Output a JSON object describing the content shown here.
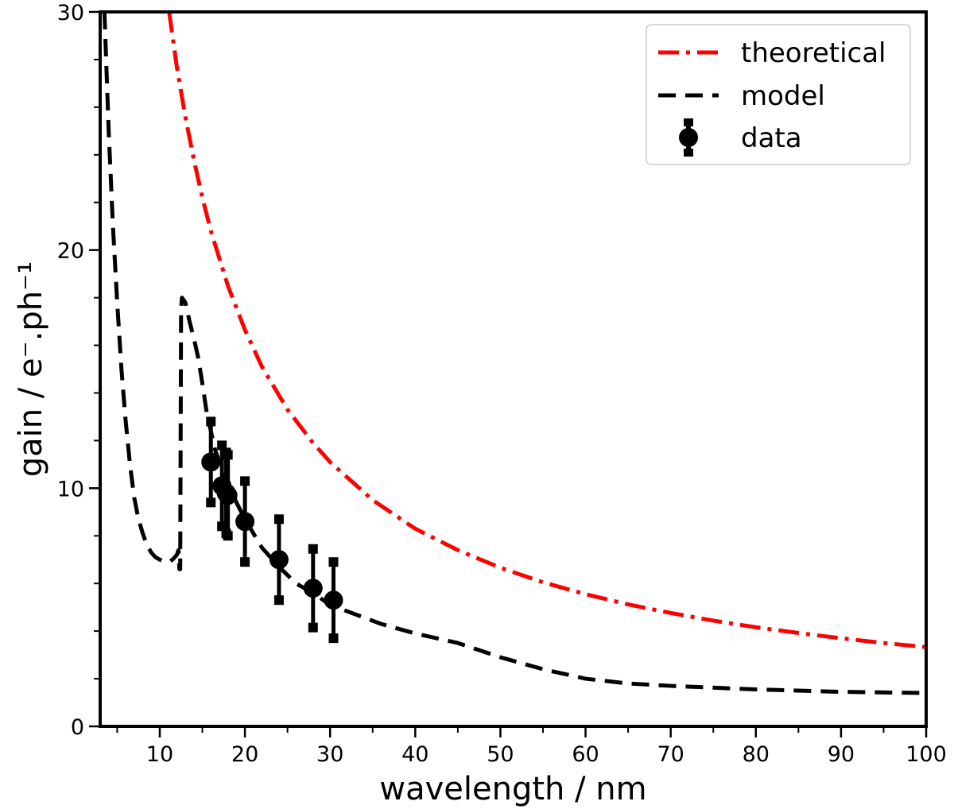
{
  "chart_data": {
    "type": "line",
    "xlabel": "wavelength / nm",
    "ylabel": "gain / e⁻.ph⁻¹",
    "xlim": [
      3,
      100
    ],
    "ylim": [
      0,
      30
    ],
    "x_ticks": [
      10,
      20,
      30,
      40,
      50,
      60,
      70,
      80,
      90,
      100
    ],
    "y_ticks": [
      0,
      10,
      20,
      30
    ],
    "legend_position": "top-right",
    "series": [
      {
        "name": "theoretical",
        "style": "dash-dot",
        "color": "#ff0000",
        "x": [
          11.1,
          12,
          13,
          14,
          15,
          16,
          18,
          20,
          22,
          25,
          28,
          30,
          35,
          40,
          45,
          50,
          55,
          60,
          65,
          70,
          75,
          80,
          85,
          90,
          95,
          100
        ],
        "y": [
          30.0,
          27.7,
          25.6,
          23.8,
          22.2,
          20.8,
          18.5,
          16.65,
          15.1,
          13.3,
          11.9,
          11.1,
          9.5,
          8.3,
          7.4,
          6.66,
          6.05,
          5.55,
          5.12,
          4.76,
          4.44,
          4.16,
          3.92,
          3.7,
          3.5,
          3.33
        ]
      },
      {
        "name": "model",
        "style": "dashed",
        "color": "#000000",
        "x": [
          3.5,
          4,
          4.5,
          5,
          5.5,
          6,
          6.5,
          7,
          7.5,
          8,
          8.5,
          9,
          9.5,
          10,
          10.5,
          11,
          11.5,
          12,
          12.2,
          12.3,
          12.4,
          12.5,
          12.6,
          13,
          13.5,
          14,
          14.5,
          15,
          15.5,
          16,
          16.5,
          17,
          17.5,
          18,
          19,
          20,
          22,
          24,
          26,
          28,
          30,
          33,
          36,
          40,
          45,
          50,
          55,
          60,
          65,
          70,
          80,
          90,
          100
        ],
        "y": [
          30.0,
          25.0,
          21.0,
          17.8,
          15.0,
          12.8,
          11.0,
          9.6,
          8.7,
          8.1,
          7.6,
          7.3,
          7.1,
          7.0,
          6.9,
          6.9,
          7.0,
          7.2,
          7.4,
          6.6,
          6.6,
          17.5,
          18.0,
          17.8,
          17.0,
          16.3,
          15.5,
          14.4,
          13.2,
          12.4,
          11.6,
          11.1,
          10.7,
          10.2,
          9.4,
          8.7,
          7.5,
          6.7,
          6.0,
          5.6,
          5.1,
          4.7,
          4.3,
          3.9,
          3.5,
          2.9,
          2.4,
          2.0,
          1.8,
          1.7,
          1.55,
          1.45,
          1.4
        ]
      },
      {
        "name": "data",
        "style": "markers-errorbars",
        "color": "#000000",
        "x": [
          16.0,
          17.3,
          17.8,
          18.0,
          20.0,
          24.0,
          28.0,
          30.4
        ],
        "y": [
          11.1,
          10.1,
          9.8,
          9.7,
          8.6,
          7.0,
          5.8,
          5.3
        ],
        "yerr": [
          1.7,
          1.7,
          1.7,
          1.7,
          1.7,
          1.7,
          1.65,
          1.6
        ]
      }
    ]
  }
}
